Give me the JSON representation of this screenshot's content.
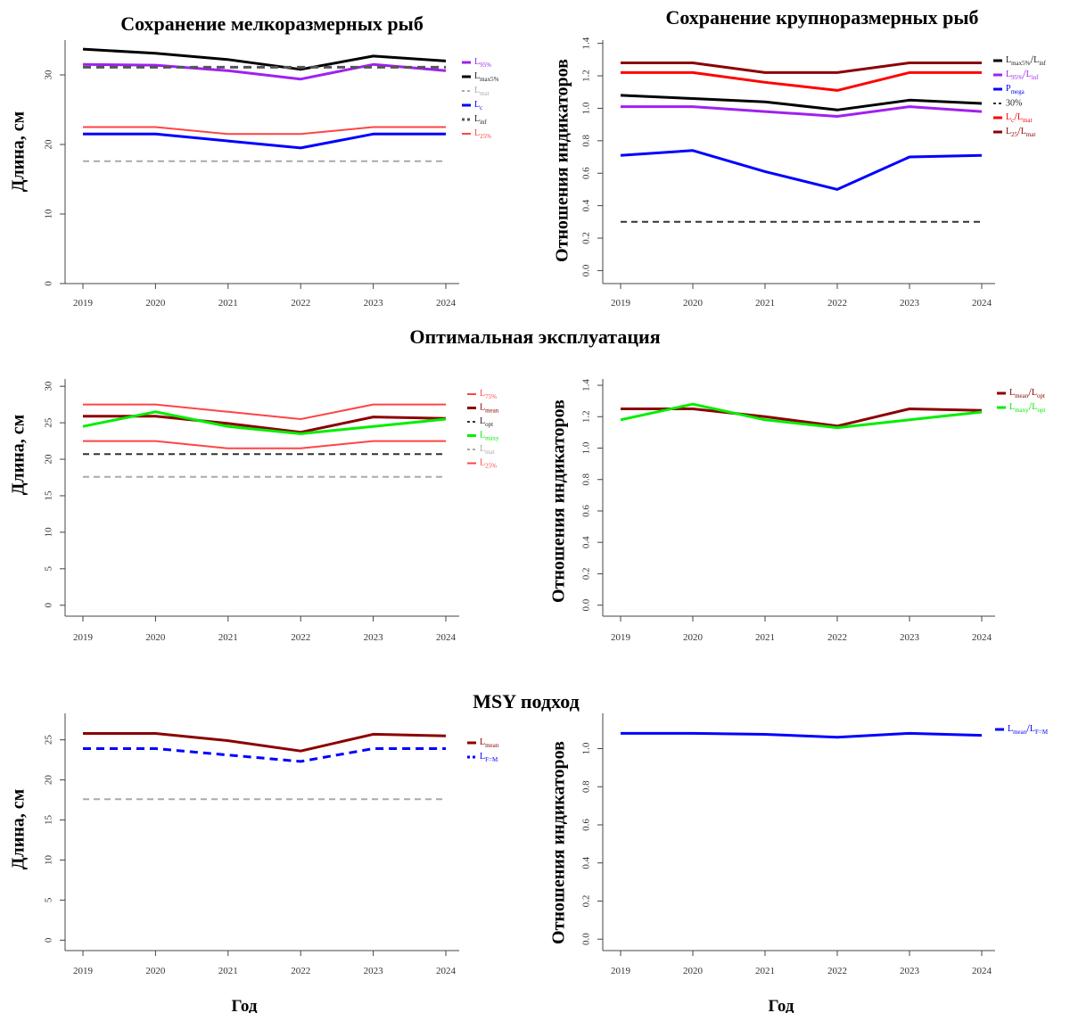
{
  "section_titles": {
    "optimal": "Оптимальная эксплуатация",
    "msy": "MSY подход"
  },
  "x_axis_label": "Год",
  "chart_data": [
    {
      "id": "p1",
      "type": "line",
      "title": "Сохранение мелкоразмерных рыб",
      "xlabel": "",
      "ylabel": "Длина, см",
      "x": [
        2019,
        2020,
        2021,
        2022,
        2023,
        2024
      ],
      "ylim": [
        0,
        35
      ],
      "yticks": [
        0,
        10,
        20,
        30
      ],
      "grid": false,
      "legend": "right",
      "series": [
        {
          "name": "L95%",
          "color": "#a020f0",
          "style": "solid",
          "width": 3,
          "values": [
            31.5,
            31.4,
            30.6,
            29.4,
            31.5,
            30.6
          ]
        },
        {
          "name": "Lmax5%",
          "color": "#000000",
          "style": "solid",
          "width": 3,
          "values": [
            33.7,
            33.1,
            32.2,
            30.8,
            32.7,
            32.0
          ]
        },
        {
          "name": "Lmat",
          "color": "#aaaaaa",
          "style": "dashed",
          "width": 2,
          "values": [
            17.6,
            17.6,
            17.6,
            17.6,
            17.6,
            17.6
          ]
        },
        {
          "name": "Lc",
          "color": "#0000ff",
          "style": "solid",
          "width": 3,
          "values": [
            21.5,
            21.5,
            20.5,
            19.5,
            21.5,
            21.5
          ]
        },
        {
          "name": "Linf",
          "color": "#555555",
          "style": "dashed",
          "width": 3,
          "values": [
            31.1,
            31.1,
            31.1,
            31.1,
            31.1,
            31.1
          ]
        },
        {
          "name": "L25%",
          "color": "#ff4444",
          "style": "solid",
          "width": 2,
          "values": [
            22.5,
            22.5,
            21.5,
            21.5,
            22.5,
            22.5
          ]
        }
      ]
    },
    {
      "id": "p2",
      "type": "line",
      "title": "Сохранение крупноразмерных рыб",
      "xlabel": "",
      "ylabel": "Отношения индикаторов",
      "x": [
        2019,
        2020,
        2021,
        2022,
        2023,
        2024
      ],
      "ylim": [
        0,
        1.4
      ],
      "yticks": [
        "0.0",
        "0.2",
        "0.4",
        "0.6",
        "0.8",
        "1.0",
        "1.2",
        "1.4"
      ],
      "grid": false,
      "legend": "right",
      "series": [
        {
          "name": "Lmax5%/Linf",
          "color": "#000000",
          "style": "solid",
          "width": 3,
          "values": [
            1.08,
            1.06,
            1.04,
            0.99,
            1.05,
            1.03
          ]
        },
        {
          "name": "L95%/Linf",
          "color": "#a020f0",
          "style": "solid",
          "width": 3,
          "values": [
            1.01,
            1.01,
            0.98,
            0.95,
            1.01,
            0.98
          ]
        },
        {
          "name": "Pmega",
          "color": "#0000ff",
          "style": "solid",
          "width": 3,
          "values": [
            0.71,
            0.74,
            0.61,
            0.5,
            0.7,
            0.71
          ]
        },
        {
          "name": "30%",
          "color": "#333333",
          "style": "dashed",
          "width": 2,
          "values": [
            0.3,
            0.3,
            0.3,
            0.3,
            0.3,
            0.3
          ]
        },
        {
          "name": "Lc/Lmat",
          "color": "#ff0000",
          "style": "solid",
          "width": 3,
          "values": [
            1.22,
            1.22,
            1.16,
            1.11,
            1.22,
            1.22
          ]
        },
        {
          "name": "L25/Lmat",
          "color": "#8b0000",
          "style": "solid",
          "width": 3,
          "values": [
            1.28,
            1.28,
            1.22,
            1.22,
            1.28,
            1.28
          ]
        }
      ]
    },
    {
      "id": "p3",
      "type": "line",
      "title": "",
      "xlabel": "",
      "ylabel": "Длина, см",
      "x": [
        2019,
        2020,
        2021,
        2022,
        2023,
        2024
      ],
      "ylim": [
        0,
        30
      ],
      "yticks": [
        0,
        5,
        10,
        15,
        20,
        25,
        30
      ],
      "grid": false,
      "legend": "right",
      "series": [
        {
          "name": "L75%",
          "color": "#ff4444",
          "style": "solid",
          "width": 2,
          "values": [
            27.5,
            27.5,
            26.5,
            25.5,
            27.5,
            27.5
          ]
        },
        {
          "name": "Lmean",
          "color": "#8b0000",
          "style": "solid",
          "width": 3,
          "values": [
            25.9,
            25.9,
            24.9,
            23.7,
            25.8,
            25.6
          ]
        },
        {
          "name": "Lopt",
          "color": "#333333",
          "style": "dashed",
          "width": 2,
          "values": [
            20.7,
            20.7,
            20.7,
            20.7,
            20.7,
            20.7
          ]
        },
        {
          "name": "Lmaxy",
          "color": "#00ee00",
          "style": "solid",
          "width": 3,
          "values": [
            24.5,
            26.5,
            24.5,
            23.5,
            24.5,
            25.5
          ]
        },
        {
          "name": "Lmat",
          "color": "#aaaaaa",
          "style": "dashed",
          "width": 2,
          "values": [
            17.6,
            17.6,
            17.6,
            17.6,
            17.6,
            17.6
          ]
        },
        {
          "name": "L25%",
          "color": "#ff4444",
          "style": "solid",
          "width": 2,
          "values": [
            22.5,
            22.5,
            21.5,
            21.5,
            22.5,
            22.5
          ]
        }
      ]
    },
    {
      "id": "p4",
      "type": "line",
      "title": "",
      "xlabel": "",
      "ylabel": "Отношения индикаторов",
      "x": [
        2019,
        2020,
        2021,
        2022,
        2023,
        2024
      ],
      "ylim": [
        0,
        1.4
      ],
      "yticks": [
        "0.0",
        "0.2",
        "0.4",
        "0.6",
        "0.8",
        "1.0",
        "1.2",
        "1.4"
      ],
      "grid": false,
      "legend": "right",
      "series": [
        {
          "name": "Lmean/Lopt",
          "color": "#8b0000",
          "style": "solid",
          "width": 3,
          "values": [
            1.25,
            1.25,
            1.2,
            1.14,
            1.25,
            1.24
          ]
        },
        {
          "name": "Lmaxy/Lopt",
          "color": "#00ee00",
          "style": "solid",
          "width": 3,
          "values": [
            1.18,
            1.28,
            1.18,
            1.13,
            1.18,
            1.23
          ]
        }
      ]
    },
    {
      "id": "p5",
      "type": "line",
      "title": "",
      "xlabel": "Год",
      "ylabel": "Длина, см",
      "x": [
        2019,
        2020,
        2021,
        2022,
        2023,
        2024
      ],
      "ylim": [
        0,
        25
      ],
      "yticks": [
        0,
        5,
        10,
        15,
        20,
        25
      ],
      "grid": false,
      "legend": "right",
      "series": [
        {
          "name": "Lmean",
          "color": "#8b0000",
          "style": "solid",
          "width": 3,
          "values": [
            25.8,
            25.8,
            24.9,
            23.6,
            25.7,
            25.5
          ]
        },
        {
          "name": "LF=M",
          "color": "#0000ff",
          "style": "dashed",
          "width": 3,
          "values": [
            23.9,
            23.9,
            23.1,
            22.3,
            23.9,
            23.9
          ]
        },
        {
          "name": "",
          "color": "#aaaaaa",
          "style": "dashed",
          "width": 2,
          "values": [
            17.6,
            17.6,
            17.6,
            17.6,
            17.6,
            17.6
          ]
        }
      ]
    },
    {
      "id": "p6",
      "type": "line",
      "title": "",
      "xlabel": "Год",
      "ylabel": "Отношения индикаторов",
      "x": [
        2019,
        2020,
        2021,
        2022,
        2023,
        2024
      ],
      "ylim": [
        0,
        1.0
      ],
      "yticks": [
        "0.0",
        "0.2",
        "0.4",
        "0.6",
        "0.8",
        "1.0"
      ],
      "grid": false,
      "legend": "right",
      "series": [
        {
          "name": "Lmean/LF=M",
          "color": "#0000ff",
          "style": "solid",
          "width": 3,
          "values": [
            1.08,
            1.08,
            1.075,
            1.06,
            1.08,
            1.07
          ]
        }
      ]
    }
  ]
}
